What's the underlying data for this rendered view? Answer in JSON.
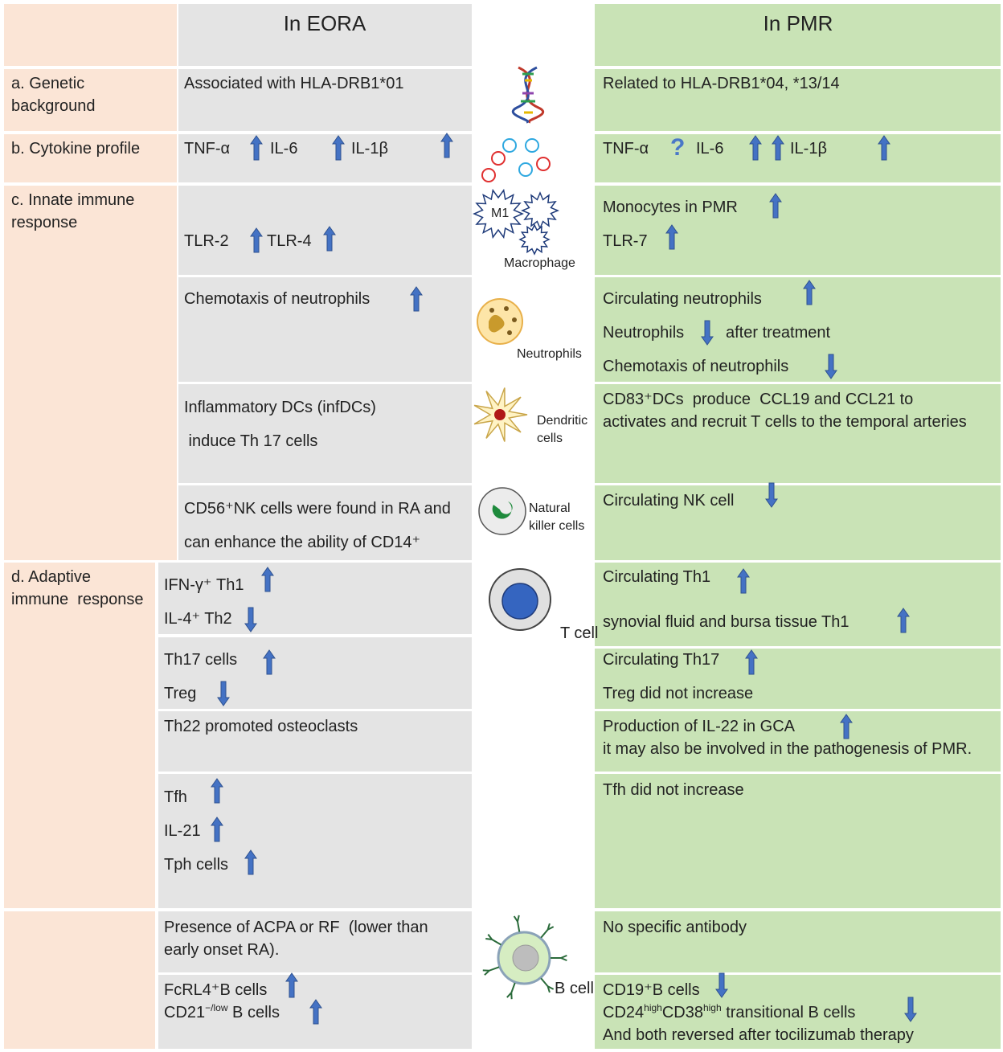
{
  "header": {
    "eora": "In EORA",
    "pmr": "In PMR"
  },
  "sections": {
    "a": [
      "a. Genetic",
      "background"
    ],
    "b": [
      "b. Cytokine profile"
    ],
    "c": [
      "c. Innate immune",
      "response"
    ],
    "d": [
      "d. Adaptive",
      "immune  response"
    ]
  },
  "eora": [
    "Associated with HLA-DRB1*01",
    "TNF-α",
    "IL-6",
    "IL-1β",
    "TLR-2",
    "TLR-4",
    "Chemotaxis of neutrophils",
    "Inflammatory DCs (infDCs)",
    " induce Th 17 cells",
    "CD56⁺NK cells were found in RA and",
    "can enhance the ability of CD14⁺",
    "IFN-γ⁺ Th1",
    "IL-4⁺ Th2",
    "Th17 cells",
    "Treg",
    "Th22 promoted osteoclasts",
    "Tfh",
    "IL-21",
    "Tph cells",
    "Presence of ACPA or RF  (lower than",
    "early onset RA).",
    "FcRL4⁺B cells",
    {
      "segments": [
        "CD21",
        "−/low",
        " B cells"
      ]
    }
  ],
  "pmr": [
    "Related to HLA-DRB1*04, *13/14",
    "TNF-α",
    "?",
    "IL-6",
    "IL-1β",
    "Monocytes in PMR",
    "TLR-7",
    "Circulating neutrophils",
    "Neutrophils",
    "after treatment",
    "Chemotaxis of neutrophils",
    "CD83⁺DCs  produce  CCL19 and CCL21 to",
    "activates and recruit T cells to the temporal arteries",
    "Circulating NK cell",
    "Circulating Th1",
    "synovial fluid and bursa tissue Th1",
    "Circulating Th17",
    "Treg did not increase",
    "Production of IL-22 in GCA",
    "it may also be involved in the pathogenesis of PMR.",
    "Tfh did not increase",
    "No specific antibody",
    "CD19⁺B cells",
    {
      "segments": [
        "CD24",
        "high",
        "CD38",
        "high",
        " transitional B cells"
      ]
    },
    "And both reversed after tocilizumab therapy"
  ],
  "icons": [
    "M1",
    "Macrophage",
    "Neutrophils",
    "Dendritic",
    "cells",
    "Natural",
    "killer cells",
    "T cell",
    "B cell"
  ]
}
